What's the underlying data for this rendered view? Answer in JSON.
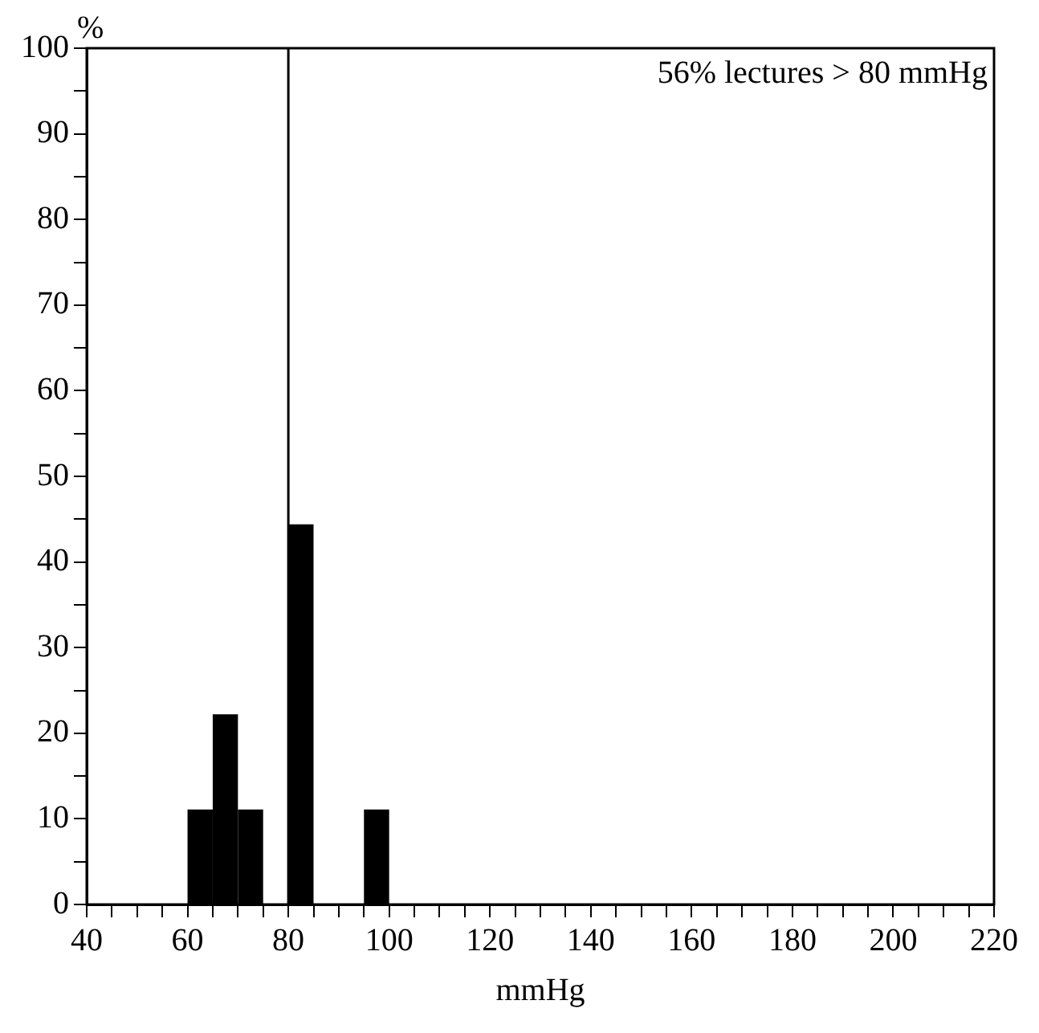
{
  "chart_data": {
    "type": "histogram",
    "xlabel": "mmHg",
    "ylabel": "%",
    "bins": [
      60,
      65,
      70,
      75,
      80,
      85,
      90,
      95,
      100
    ],
    "values": [
      11.1,
      22.2,
      11.1,
      0,
      44.4,
      0,
      0,
      11.1
    ],
    "color": "#000000",
    "xlim": [
      40,
      220
    ],
    "xticks": [
      40,
      {
        "value": 45,
        "label": null
      },
      {
        "value": 50,
        "label": null
      },
      {
        "value": 55,
        "label": null
      },
      60,
      {
        "value": 65,
        "label": null
      },
      {
        "value": 70,
        "label": null
      },
      {
        "value": 75,
        "label": null
      },
      80,
      {
        "value": 85,
        "label": null
      },
      {
        "value": 90,
        "label": null
      },
      {
        "value": 95,
        "label": null
      },
      100,
      {
        "value": 105,
        "label": null
      },
      {
        "value": 110,
        "label": null
      },
      {
        "value": 115,
        "label": null
      },
      120,
      {
        "value": 125,
        "label": null
      },
      {
        "value": 130,
        "label": null
      },
      {
        "value": 135,
        "label": null
      },
      140,
      {
        "value": 145,
        "label": null
      },
      {
        "value": 150,
        "label": null
      },
      {
        "value": 155,
        "label": null
      },
      160,
      {
        "value": 165,
        "label": null
      },
      {
        "value": 170,
        "label": null
      },
      {
        "value": 175,
        "label": null
      },
      180,
      {
        "value": 185,
        "label": null
      },
      {
        "value": 190,
        "label": null
      },
      {
        "value": 195,
        "label": null
      },
      200,
      {
        "value": 205,
        "label": null
      },
      {
        "value": 210,
        "label": null
      },
      {
        "value": 215,
        "label": null
      },
      220
    ],
    "ylim": [
      0,
      100
    ],
    "yticks": [
      0,
      {
        "value": 5,
        "label": null
      },
      10,
      {
        "value": 15,
        "label": null
      },
      20,
      {
        "value": 25,
        "label": null
      },
      30,
      {
        "value": 35,
        "label": null
      },
      40,
      {
        "value": 45,
        "label": null
      },
      50,
      {
        "value": 55,
        "label": null
      },
      60,
      {
        "value": 65,
        "label": null
      },
      70,
      {
        "value": 75,
        "label": null
      },
      80,
      {
        "value": 85,
        "label": null
      },
      90,
      {
        "value": 95,
        "label": null
      },
      100
    ],
    "ref_lines": [
      {
        "axis": "x",
        "value": 80,
        "color": "#000000"
      }
    ],
    "annotations": [
      "56% lectures > 80 mmHg"
    ],
    "grid": false,
    "legend": false
  }
}
